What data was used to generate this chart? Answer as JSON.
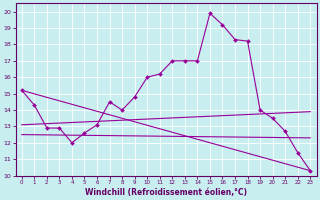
{
  "xlabel": "Windchill (Refroidissement éolien,°C)",
  "background_color": "#c8eef0",
  "line_color": "#990099",
  "xlim": [
    -0.5,
    23.5
  ],
  "ylim": [
    10,
    20.5
  ],
  "yticks": [
    10,
    11,
    12,
    13,
    14,
    15,
    16,
    17,
    18,
    19,
    20
  ],
  "xticks": [
    0,
    1,
    2,
    3,
    4,
    5,
    6,
    7,
    8,
    9,
    10,
    11,
    12,
    13,
    14,
    15,
    16,
    17,
    18,
    19,
    20,
    21,
    22,
    23
  ],
  "main_line": {
    "x": [
      0,
      1,
      2,
      3,
      4,
      5,
      6,
      7,
      8,
      9,
      10,
      11,
      12,
      13,
      14,
      15,
      16,
      17,
      18,
      19,
      20,
      21,
      22,
      23
    ],
    "y": [
      15.2,
      14.3,
      12.9,
      12.9,
      12.0,
      12.6,
      13.1,
      14.5,
      14.0,
      14.8,
      16.0,
      16.2,
      17.0,
      17.0,
      17.0,
      19.9,
      19.2,
      18.3,
      18.2,
      14.0,
      13.5,
      12.7,
      11.4,
      10.3
    ]
  },
  "diag_line": {
    "x": [
      0,
      23
    ],
    "y": [
      15.2,
      10.3
    ]
  },
  "upper_flat": {
    "x": [
      0,
      23
    ],
    "y": [
      13.1,
      13.9
    ]
  },
  "lower_flat": {
    "x": [
      0,
      23
    ],
    "y": [
      12.5,
      12.3
    ]
  }
}
